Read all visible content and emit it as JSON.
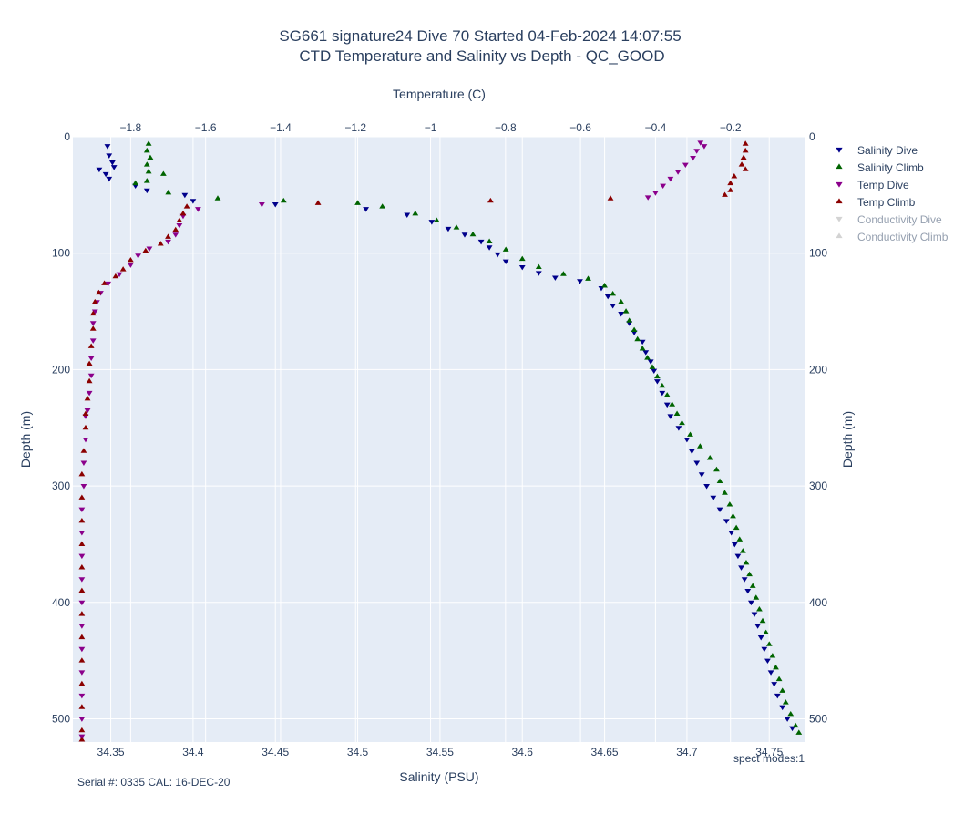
{
  "chart_data": {
    "type": "scatter",
    "title": "SG661 signature24 Dive 70 Started 04-Feb-2024 14:07:55",
    "subtitle": "CTD Temperature and Salinity vs Depth - QC_GOOD",
    "xlabel": "Salinity (PSU)",
    "x2label": "Temperature (C)",
    "ylabel": "Depth (m)",
    "y2label": "Depth (m)",
    "xlim": [
      34.327,
      34.772
    ],
    "x2lim": [
      -1.954,
      -0.0
    ],
    "ylim": [
      520,
      0
    ],
    "x_ticks": [
      34.35,
      34.4,
      34.45,
      34.5,
      34.55,
      34.6,
      34.65,
      34.7,
      34.75
    ],
    "x2_ticks": [
      -1.8,
      -1.6,
      -1.4,
      -1.2,
      -1.0,
      -0.8,
      -0.6,
      -0.4,
      -0.2
    ],
    "x2_tick_labels": [
      "−1.8",
      "−1.6",
      "−1.4",
      "−1.2",
      "−1",
      "−0.8",
      "−0.6",
      "−0.4",
      "−0.2"
    ],
    "y_ticks": [
      0,
      100,
      200,
      300,
      400,
      500
    ],
    "grid": true,
    "legend_position": "top-right",
    "annotations": {
      "footer_left": "Serial #: 0335  CAL: 16-DEC-20",
      "footer_right": "spect modes:1"
    },
    "series": [
      {
        "name": "Salinity Dive",
        "axis": "salinity",
        "marker": "triangle-down",
        "color": "#00008b",
        "visible": true,
        "points": [
          [
            34.348,
            8
          ],
          [
            34.349,
            16
          ],
          [
            34.351,
            22
          ],
          [
            34.352,
            26
          ],
          [
            34.343,
            28
          ],
          [
            34.347,
            32
          ],
          [
            34.349,
            36
          ],
          [
            34.365,
            42
          ],
          [
            34.372,
            46
          ],
          [
            34.395,
            50
          ],
          [
            34.4,
            55
          ],
          [
            34.45,
            58
          ],
          [
            34.505,
            62
          ],
          [
            34.53,
            67
          ],
          [
            34.545,
            73
          ],
          [
            34.555,
            79
          ],
          [
            34.565,
            84
          ],
          [
            34.575,
            90
          ],
          [
            34.58,
            95
          ],
          [
            34.585,
            101
          ],
          [
            34.59,
            107
          ],
          [
            34.6,
            112
          ],
          [
            34.61,
            117
          ],
          [
            34.62,
            121
          ],
          [
            34.635,
            124
          ],
          [
            34.648,
            130
          ],
          [
            34.652,
            137
          ],
          [
            34.655,
            145
          ],
          [
            34.66,
            152
          ],
          [
            34.665,
            160
          ],
          [
            34.668,
            168
          ],
          [
            34.673,
            176
          ],
          [
            34.675,
            185
          ],
          [
            34.678,
            193
          ],
          [
            34.68,
            201
          ],
          [
            34.682,
            210
          ],
          [
            34.685,
            220
          ],
          [
            34.688,
            230
          ],
          [
            34.69,
            240
          ],
          [
            34.695,
            250
          ],
          [
            34.7,
            260
          ],
          [
            34.703,
            270
          ],
          [
            34.706,
            280
          ],
          [
            34.709,
            290
          ],
          [
            34.712,
            300
          ],
          [
            34.716,
            310
          ],
          [
            34.72,
            320
          ],
          [
            34.724,
            330
          ],
          [
            34.727,
            340
          ],
          [
            34.729,
            350
          ],
          [
            34.731,
            360
          ],
          [
            34.733,
            370
          ],
          [
            34.735,
            380
          ],
          [
            34.737,
            390
          ],
          [
            34.739,
            400
          ],
          [
            34.741,
            410
          ],
          [
            34.743,
            420
          ],
          [
            34.745,
            430
          ],
          [
            34.747,
            440
          ],
          [
            34.749,
            450
          ],
          [
            34.751,
            460
          ],
          [
            34.753,
            470
          ],
          [
            34.755,
            480
          ],
          [
            34.758,
            490
          ],
          [
            34.761,
            500
          ],
          [
            34.764,
            508
          ]
        ]
      },
      {
        "name": "Salinity Climb",
        "axis": "salinity",
        "marker": "triangle-up",
        "color": "#006400",
        "visible": true,
        "points": [
          [
            34.373,
            6
          ],
          [
            34.372,
            12
          ],
          [
            34.374,
            18
          ],
          [
            34.372,
            24
          ],
          [
            34.373,
            30
          ],
          [
            34.382,
            32
          ],
          [
            34.372,
            38
          ],
          [
            34.365,
            40
          ],
          [
            34.385,
            48
          ],
          [
            34.415,
            53
          ],
          [
            34.455,
            55
          ],
          [
            34.5,
            57
          ],
          [
            34.515,
            60
          ],
          [
            34.535,
            66
          ],
          [
            34.548,
            72
          ],
          [
            34.56,
            78
          ],
          [
            34.57,
            84
          ],
          [
            34.58,
            90
          ],
          [
            34.59,
            97
          ],
          [
            34.6,
            105
          ],
          [
            34.61,
            112
          ],
          [
            34.625,
            118
          ],
          [
            34.64,
            122
          ],
          [
            34.65,
            128
          ],
          [
            34.655,
            135
          ],
          [
            34.66,
            142
          ],
          [
            34.663,
            150
          ],
          [
            34.665,
            158
          ],
          [
            34.668,
            166
          ],
          [
            34.67,
            174
          ],
          [
            34.673,
            182
          ],
          [
            34.676,
            190
          ],
          [
            34.679,
            198
          ],
          [
            34.682,
            206
          ],
          [
            34.685,
            214
          ],
          [
            34.688,
            222
          ],
          [
            34.691,
            230
          ],
          [
            34.694,
            238
          ],
          [
            34.697,
            246
          ],
          [
            34.702,
            256
          ],
          [
            34.708,
            266
          ],
          [
            34.714,
            276
          ],
          [
            34.718,
            286
          ],
          [
            34.72,
            296
          ],
          [
            34.723,
            306
          ],
          [
            34.726,
            316
          ],
          [
            34.728,
            326
          ],
          [
            34.73,
            336
          ],
          [
            34.732,
            346
          ],
          [
            34.734,
            356
          ],
          [
            34.736,
            366
          ],
          [
            34.738,
            376
          ],
          [
            34.74,
            386
          ],
          [
            34.742,
            396
          ],
          [
            34.744,
            406
          ],
          [
            34.746,
            416
          ],
          [
            34.748,
            426
          ],
          [
            34.75,
            436
          ],
          [
            34.752,
            446
          ],
          [
            34.754,
            456
          ],
          [
            34.756,
            466
          ],
          [
            34.758,
            476
          ],
          [
            34.76,
            486
          ],
          [
            34.763,
            496
          ],
          [
            34.766,
            506
          ],
          [
            34.768,
            512
          ]
        ]
      },
      {
        "name": "Temp Dive",
        "axis": "temperature",
        "marker": "triangle-down",
        "color": "#8b008b",
        "visible": true,
        "points": [
          [
            -0.28,
            5
          ],
          [
            -0.27,
            8
          ],
          [
            -0.29,
            12
          ],
          [
            -0.3,
            18
          ],
          [
            -0.32,
            24
          ],
          [
            -0.34,
            30
          ],
          [
            -0.36,
            36
          ],
          [
            -0.38,
            42
          ],
          [
            -0.4,
            48
          ],
          [
            -0.42,
            52
          ],
          [
            -1.45,
            58
          ],
          [
            -1.62,
            62
          ],
          [
            -1.66,
            68
          ],
          [
            -1.67,
            76
          ],
          [
            -1.68,
            84
          ],
          [
            -1.7,
            90
          ],
          [
            -1.75,
            96
          ],
          [
            -1.78,
            102
          ],
          [
            -1.8,
            110
          ],
          [
            -1.83,
            118
          ],
          [
            -1.86,
            126
          ],
          [
            -1.88,
            134
          ],
          [
            -1.89,
            142
          ],
          [
            -1.895,
            150
          ],
          [
            -1.9,
            160
          ],
          [
            -1.9,
            175
          ],
          [
            -1.905,
            190
          ],
          [
            -1.905,
            205
          ],
          [
            -1.91,
            220
          ],
          [
            -1.915,
            235
          ],
          [
            -1.92,
            240
          ],
          [
            -1.92,
            260
          ],
          [
            -1.925,
            280
          ],
          [
            -1.925,
            300
          ],
          [
            -1.93,
            320
          ],
          [
            -1.93,
            340
          ],
          [
            -1.93,
            360
          ],
          [
            -1.93,
            380
          ],
          [
            -1.93,
            400
          ],
          [
            -1.93,
            420
          ],
          [
            -1.93,
            440
          ],
          [
            -1.93,
            460
          ],
          [
            -1.93,
            480
          ],
          [
            -1.93,
            500
          ],
          [
            -1.93,
            515
          ]
        ]
      },
      {
        "name": "Temp Climb",
        "axis": "temperature",
        "marker": "triangle-up",
        "color": "#8b0000",
        "visible": true,
        "points": [
          [
            -0.16,
            6
          ],
          [
            -0.16,
            12
          ],
          [
            -0.165,
            18
          ],
          [
            -0.17,
            24
          ],
          [
            -0.16,
            28
          ],
          [
            -0.19,
            34
          ],
          [
            -0.2,
            40
          ],
          [
            -0.2,
            46
          ],
          [
            -0.215,
            50
          ],
          [
            -0.52,
            53
          ],
          [
            -0.84,
            55
          ],
          [
            -1.3,
            57
          ],
          [
            -1.65,
            60
          ],
          [
            -1.66,
            66
          ],
          [
            -1.67,
            72
          ],
          [
            -1.68,
            80
          ],
          [
            -1.7,
            86
          ],
          [
            -1.72,
            92
          ],
          [
            -1.76,
            98
          ],
          [
            -1.8,
            106
          ],
          [
            -1.82,
            114
          ],
          [
            -1.84,
            120
          ],
          [
            -1.87,
            126
          ],
          [
            -1.885,
            134
          ],
          [
            -1.895,
            142
          ],
          [
            -1.9,
            152
          ],
          [
            -1.9,
            165
          ],
          [
            -1.905,
            180
          ],
          [
            -1.91,
            195
          ],
          [
            -1.91,
            210
          ],
          [
            -1.915,
            225
          ],
          [
            -1.92,
            238
          ],
          [
            -1.92,
            250
          ],
          [
            -1.925,
            270
          ],
          [
            -1.93,
            290
          ],
          [
            -1.93,
            310
          ],
          [
            -1.93,
            330
          ],
          [
            -1.93,
            350
          ],
          [
            -1.93,
            370
          ],
          [
            -1.93,
            390
          ],
          [
            -1.93,
            410
          ],
          [
            -1.93,
            430
          ],
          [
            -1.93,
            450
          ],
          [
            -1.93,
            470
          ],
          [
            -1.93,
            490
          ],
          [
            -1.93,
            510
          ],
          [
            -1.93,
            518
          ]
        ]
      },
      {
        "name": "Conductivity Dive",
        "axis": "none",
        "marker": "triangle-down",
        "color": "#a9a9a9",
        "visible": false,
        "points": []
      },
      {
        "name": "Conductivity Climb",
        "axis": "none",
        "marker": "triangle-up",
        "color": "#a9a9a9",
        "visible": false,
        "points": []
      }
    ]
  }
}
